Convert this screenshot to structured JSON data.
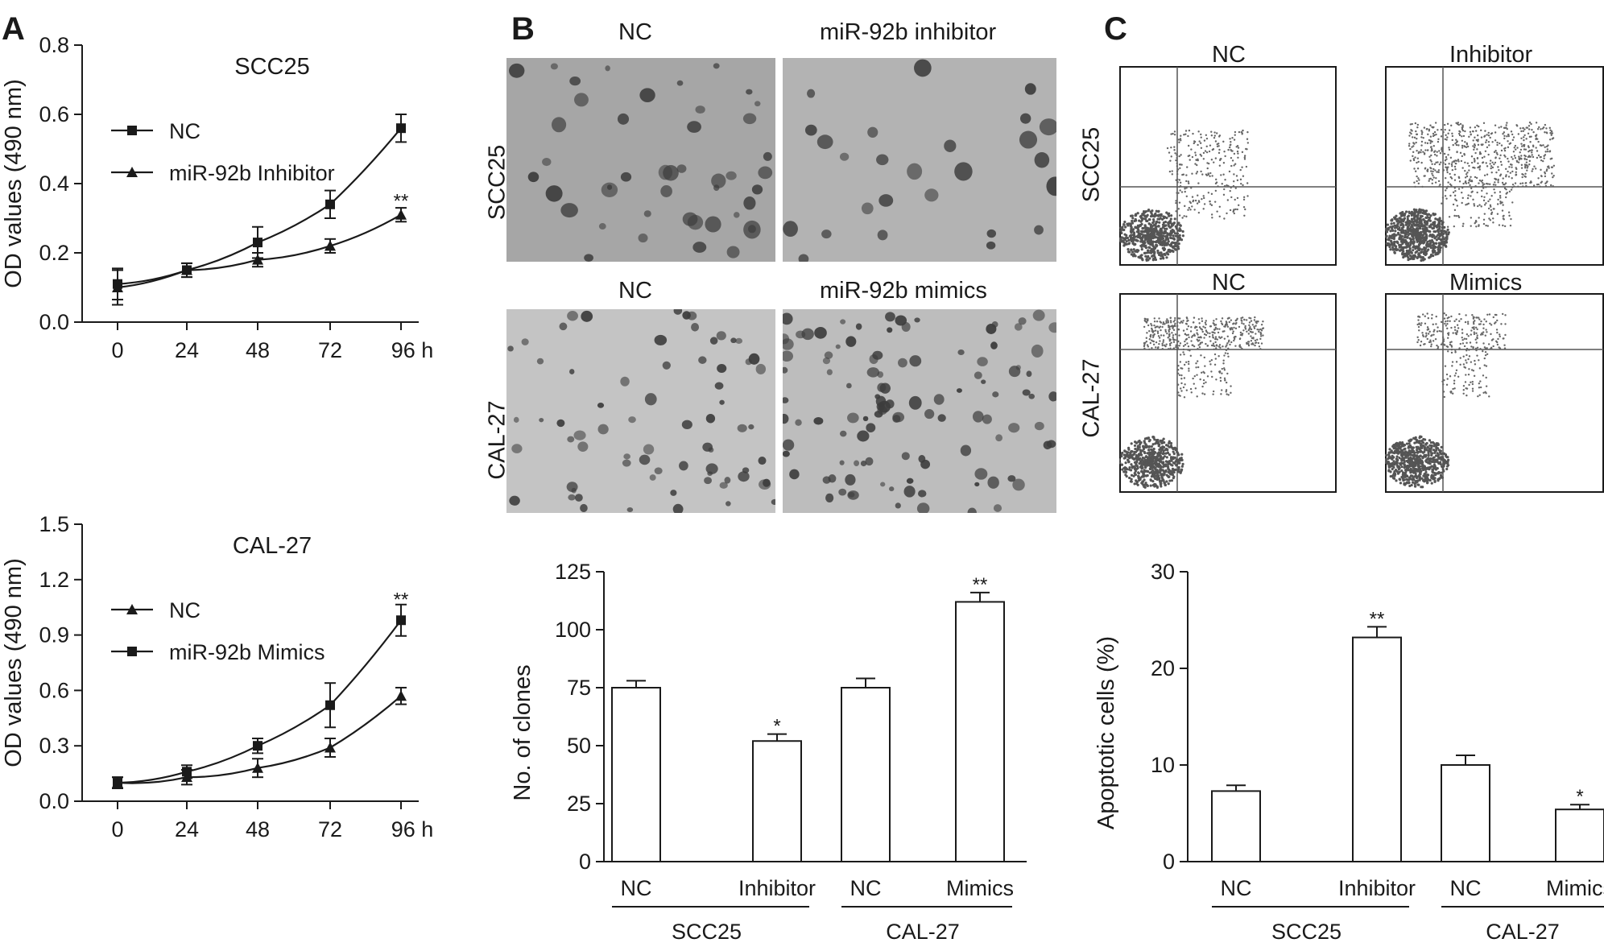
{
  "panels": {
    "a": "A",
    "b": "B",
    "c": "C"
  },
  "colony_images": {
    "row1": {
      "left": "NC",
      "right": "miR-92b inhibitor",
      "side": "SCC25"
    },
    "row2": {
      "left": "NC",
      "right": "miR-92b mimics",
      "side": "CAL-27"
    }
  },
  "flow_plots": {
    "row1": {
      "left": "NC",
      "right": "Inhibitor",
      "side": "SCC25"
    },
    "row2": {
      "left": "NC",
      "right": "Mimics",
      "side": "CAL-27"
    }
  },
  "chart_data": [
    {
      "id": "a1",
      "type": "line",
      "title": "SCC25",
      "ylabel": "OD values (490 nm)",
      "x": [
        0,
        24,
        48,
        72,
        96
      ],
      "x_ticks": [
        "0",
        "24",
        "48",
        "72",
        "96 h"
      ],
      "ylim": [
        0,
        0.8
      ],
      "y_ticks": [
        "0.0",
        "0.2",
        "0.4",
        "0.6",
        "0.8"
      ],
      "series": [
        {
          "name": "NC",
          "marker": "square",
          "values": [
            0.11,
            0.15,
            0.23,
            0.34,
            0.56
          ],
          "errors": [
            0.045,
            0.02,
            0.045,
            0.04,
            0.04
          ]
        },
        {
          "name": "miR-92b Inhibitor",
          "marker": "triangle",
          "values": [
            0.1,
            0.15,
            0.18,
            0.22,
            0.31
          ],
          "errors": [
            0.05,
            0.02,
            0.02,
            0.02,
            0.02
          ]
        }
      ],
      "annotations": [
        {
          "x": 96,
          "y": 0.355,
          "text": "**"
        }
      ]
    },
    {
      "id": "a2",
      "type": "line",
      "title": "CAL-27",
      "ylabel": "OD values (490 nm)",
      "x": [
        0,
        24,
        48,
        72,
        96
      ],
      "x_ticks": [
        "0",
        "24",
        "48",
        "72",
        "96 h"
      ],
      "ylim": [
        0,
        1.5
      ],
      "y_ticks": [
        "0.0",
        "0.3",
        "0.6",
        "0.9",
        "1.2",
        "1.5"
      ],
      "series": [
        {
          "name": "NC",
          "marker": "triangle",
          "values": [
            0.1,
            0.13,
            0.18,
            0.29,
            0.57
          ],
          "errors": [
            0.03,
            0.04,
            0.05,
            0.05,
            0.045
          ]
        },
        {
          "name": "miR-92b Mimics",
          "marker": "square",
          "values": [
            0.1,
            0.16,
            0.3,
            0.52,
            0.98
          ],
          "errors": [
            0.03,
            0.035,
            0.04,
            0.12,
            0.085
          ]
        }
      ],
      "annotations": [
        {
          "x": 96,
          "y": 1.1,
          "text": "**"
        }
      ]
    },
    {
      "id": "b",
      "type": "bar",
      "ylabel": "No. of clones",
      "categories": [
        "NC",
        "Inhibitor",
        "NC",
        "Mimics"
      ],
      "groups": [
        "SCC25",
        "CAL-27"
      ],
      "values": [
        75,
        52,
        75,
        112
      ],
      "errors": [
        3,
        3,
        4,
        4
      ],
      "ylim": [
        0,
        125
      ],
      "y_ticks": [
        "0",
        "25",
        "50",
        "75",
        "100",
        "125"
      ],
      "annotations": [
        "",
        "*",
        "",
        "**"
      ]
    },
    {
      "id": "c",
      "type": "bar",
      "ylabel": "Apoptotic cells (%)",
      "categories": [
        "NC",
        "Inhibitor",
        "NC",
        "Mimics"
      ],
      "groups": [
        "SCC25",
        "CAL-27"
      ],
      "values": [
        7.3,
        23.2,
        10.0,
        5.4
      ],
      "errors": [
        0.6,
        1.1,
        1.0,
        0.5
      ],
      "ylim": [
        0,
        30
      ],
      "y_ticks": [
        "0",
        "10",
        "20",
        "30"
      ],
      "annotations": [
        "",
        "**",
        "",
        "*"
      ]
    }
  ]
}
